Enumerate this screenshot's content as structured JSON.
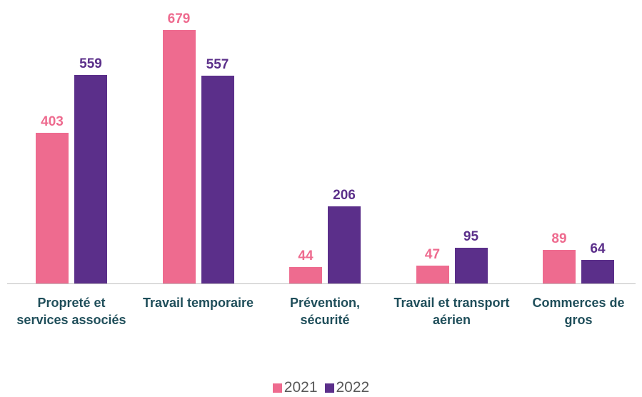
{
  "chart_data": {
    "type": "bar",
    "categories": [
      "Propreté et services associés",
      "Travail temporaire",
      "Prévention, sécurité",
      "Travail et transport aérien",
      "Commerces de gros"
    ],
    "series": [
      {
        "name": "2021",
        "color": "#ee6b8f",
        "values": [
          403,
          679,
          44,
          47,
          89
        ]
      },
      {
        "name": "2022",
        "color": "#5b2f8a",
        "values": [
          559,
          557,
          206,
          95,
          64
        ]
      }
    ],
    "legend": "bottom"
  }
}
